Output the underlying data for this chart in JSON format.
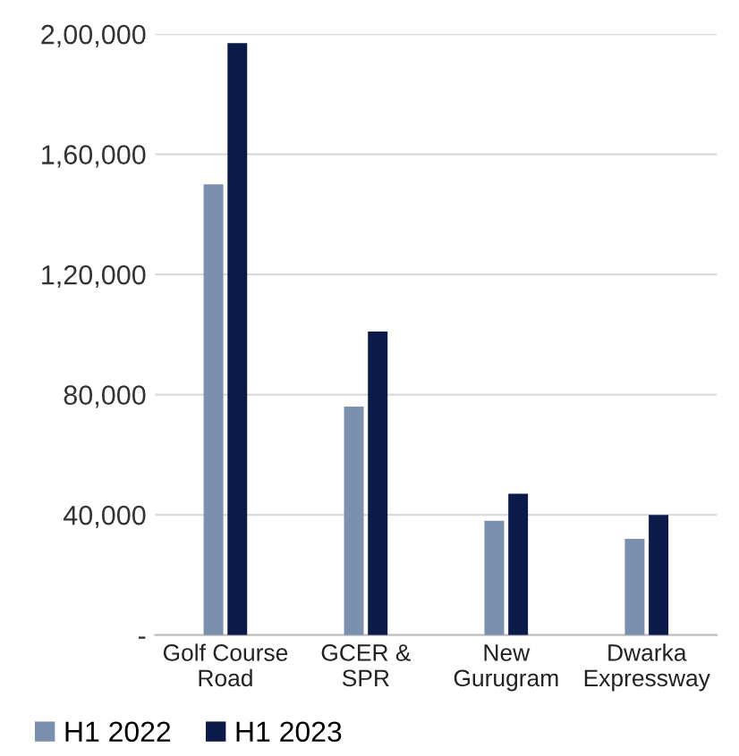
{
  "chart_data": {
    "type": "bar",
    "categories": [
      "Golf Course\nRoad",
      "GCER &\nSPR",
      "New\nGurugram",
      "Dwarka\nExpressway"
    ],
    "series": [
      {
        "name": "H1 2022",
        "color": "#7b8fae",
        "values": [
          150000,
          76000,
          38000,
          32000
        ]
      },
      {
        "name": "H1 2023",
        "color": "#0c1a4a",
        "values": [
          197000,
          101000,
          47000,
          40000
        ]
      }
    ],
    "ylim": [
      0,
      200000
    ],
    "yticks": [
      {
        "value": 0,
        "label": "-"
      },
      {
        "value": 40000,
        "label": "40,000"
      },
      {
        "value": 80000,
        "label": "80,000"
      },
      {
        "value": 120000,
        "label": "1,20,000"
      },
      {
        "value": 160000,
        "label": "1,60,000"
      },
      {
        "value": 200000,
        "label": "2,00,000"
      }
    ],
    "grid": "y",
    "legend": "bottom left"
  }
}
